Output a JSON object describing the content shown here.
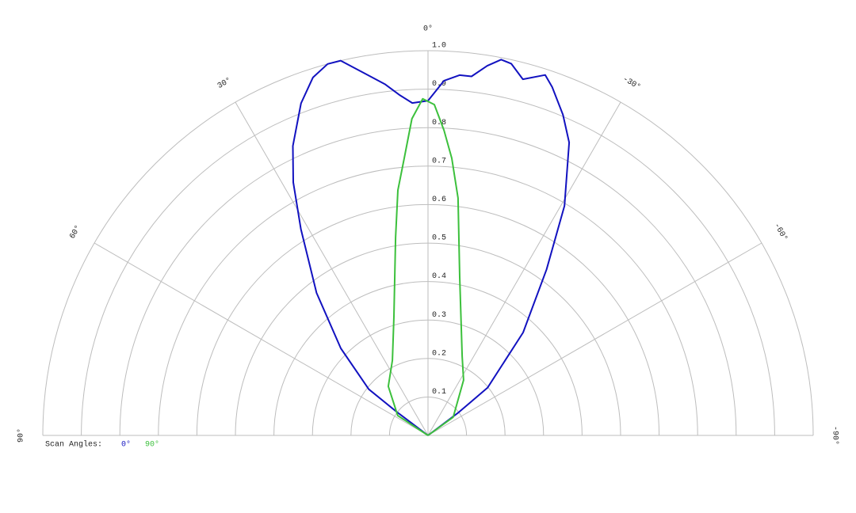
{
  "chart_data": {
    "type": "polar",
    "legend_title": "Scan Angles:",
    "rlim": [
      0,
      1
    ],
    "rticks": [
      0.1,
      0.2,
      0.3,
      0.4,
      0.5,
      0.6,
      0.7,
      0.8,
      0.9,
      {
        "value": 1,
        "label": "1.0"
      }
    ],
    "thetalim": [
      90,
      -90
    ],
    "thetaticks": [
      {
        "value": 0,
        "label": "0°"
      },
      {
        "value": 30,
        "label": "30°"
      },
      {
        "value": -30,
        "label": "-30°"
      },
      {
        "value": 60,
        "label": "60°"
      },
      {
        "value": -60,
        "label": "-60°"
      },
      {
        "value": 90,
        "label": "90°"
      },
      {
        "value": -90,
        "label": "-90°"
      }
    ],
    "grid": true,
    "series": [
      {
        "name": "0°",
        "color": "#1212c0",
        "x": [
          55,
          53,
          52,
          45,
          38,
          31.6,
          28,
          25,
          20.9,
          17.8,
          15.1,
          13.1,
          9.9,
          7,
          4.7,
          2.7,
          0,
          -2.6,
          -5,
          -6.9,
          -9.1,
          -11,
          -12.6,
          -14.9,
          -18,
          -19.6,
          -22.8,
          -25.7,
          -30.7,
          -35.5,
          -42.7,
          -51.3,
          -53,
          -55
        ],
        "values": [
          0,
          0.1,
          0.195,
          0.32,
          0.47,
          0.63,
          0.745,
          0.83,
          0.924,
          0.977,
          1.0,
          1.0,
          0.955,
          0.92,
          0.887,
          0.865,
          0.87,
          0.923,
          0.94,
          0.94,
          0.973,
          0.995,
          0.99,
          0.958,
          0.985,
          0.961,
          0.904,
          0.845,
          0.694,
          0.53,
          0.364,
          0.198,
          0.1,
          0
        ]
      },
      {
        "name": "90°",
        "color": "#3cc03c",
        "x": [
          57,
          56.7,
          38.9,
          25.3,
          16,
          9.3,
          7,
          4.9,
          2.9,
          0.9,
          -1.1,
          -3,
          -4.9,
          -7.2,
          -11.3,
          -23.3,
          -32.7,
          -54,
          -56
        ],
        "values": [
          0,
          0.094,
          0.164,
          0.216,
          0.321,
          0.521,
          0.642,
          0.723,
          0.824,
          0.875,
          0.86,
          0.794,
          0.723,
          0.622,
          0.42,
          0.224,
          0.171,
          0.081,
          0
        ]
      }
    ]
  }
}
